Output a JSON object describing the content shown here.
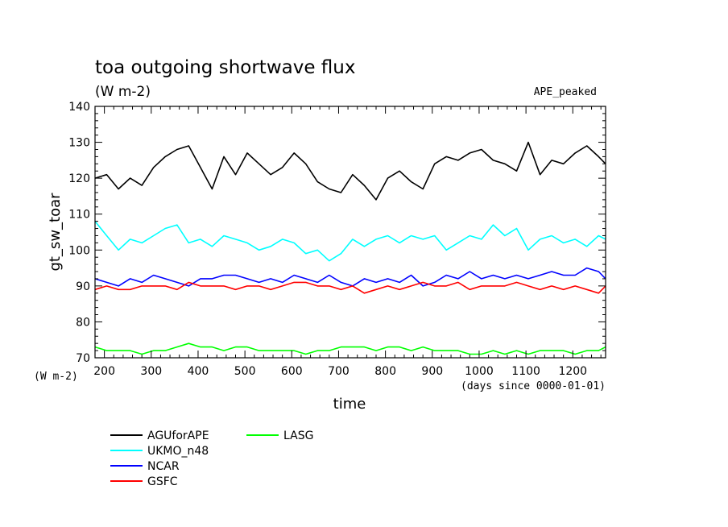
{
  "chart_data": {
    "type": "line",
    "title": "toa outgoing shortwave flux",
    "subtitle": "(W m-2)",
    "annotation": "APE_peaked",
    "xlabel": "time",
    "xunits": "(days since 0000-01-01)",
    "ylabel": "gt_sw_toar",
    "yunits": "(W m-2)",
    "xlim": [
      180,
      1270
    ],
    "ylim": [
      70,
      140
    ],
    "xticks": [
      200,
      300,
      400,
      500,
      600,
      700,
      800,
      900,
      1000,
      1100,
      1200
    ],
    "yticks": [
      70,
      80,
      90,
      100,
      110,
      120,
      130,
      140
    ],
    "grid": false,
    "legend_placement": "below",
    "x": [
      180,
      205,
      230,
      255,
      280,
      305,
      330,
      355,
      380,
      405,
      430,
      455,
      480,
      505,
      530,
      555,
      580,
      605,
      630,
      655,
      680,
      705,
      730,
      755,
      780,
      805,
      830,
      855,
      880,
      905,
      930,
      955,
      980,
      1005,
      1030,
      1055,
      1080,
      1105,
      1130,
      1155,
      1180,
      1205,
      1230,
      1255,
      1270
    ],
    "series": [
      {
        "name": "AGUforAPE",
        "color": "#000000",
        "values": [
          120,
          121,
          117,
          120,
          118,
          123,
          126,
          128,
          129,
          123,
          117,
          126,
          121,
          127,
          124,
          121,
          123,
          127,
          124,
          119,
          117,
          116,
          121,
          118,
          114,
          120,
          122,
          119,
          117,
          124,
          126,
          125,
          127,
          128,
          125,
          124,
          122,
          130,
          121,
          125,
          124,
          127,
          129,
          126,
          124
        ]
      },
      {
        "name": "UKMO_n48",
        "color": "#00ffff",
        "values": [
          108,
          104,
          100,
          103,
          102,
          104,
          106,
          107,
          102,
          103,
          101,
          104,
          103,
          102,
          100,
          101,
          103,
          102,
          99,
          100,
          97,
          99,
          103,
          101,
          103,
          104,
          102,
          104,
          103,
          104,
          100,
          102,
          104,
          103,
          107,
          104,
          106,
          100,
          103,
          104,
          102,
          103,
          101,
          104,
          103
        ]
      },
      {
        "name": "NCAR",
        "color": "#0000ff",
        "values": [
          92,
          91,
          90,
          92,
          91,
          93,
          92,
          91,
          90,
          92,
          92,
          93,
          93,
          92,
          91,
          92,
          91,
          93,
          92,
          91,
          93,
          91,
          90,
          92,
          91,
          92,
          91,
          93,
          90,
          91,
          93,
          92,
          94,
          92,
          93,
          92,
          93,
          92,
          93,
          94,
          93,
          93,
          95,
          94,
          92
        ]
      },
      {
        "name": "GSFC",
        "color": "#ff0000",
        "values": [
          89,
          90,
          89,
          89,
          90,
          90,
          90,
          89,
          91,
          90,
          90,
          90,
          89,
          90,
          90,
          89,
          90,
          91,
          91,
          90,
          90,
          89,
          90,
          88,
          89,
          90,
          89,
          90,
          91,
          90,
          90,
          91,
          89,
          90,
          90,
          90,
          91,
          90,
          89,
          90,
          89,
          90,
          89,
          88,
          90
        ]
      },
      {
        "name": "LASG",
        "color": "#00ff00",
        "values": [
          73,
          72,
          72,
          72,
          71,
          72,
          72,
          73,
          74,
          73,
          73,
          72,
          73,
          73,
          72,
          72,
          72,
          72,
          71,
          72,
          72,
          73,
          73,
          73,
          72,
          73,
          73,
          72,
          73,
          72,
          72,
          72,
          71,
          71,
          72,
          71,
          72,
          71,
          72,
          72,
          72,
          71,
          72,
          72,
          73
        ]
      }
    ]
  }
}
